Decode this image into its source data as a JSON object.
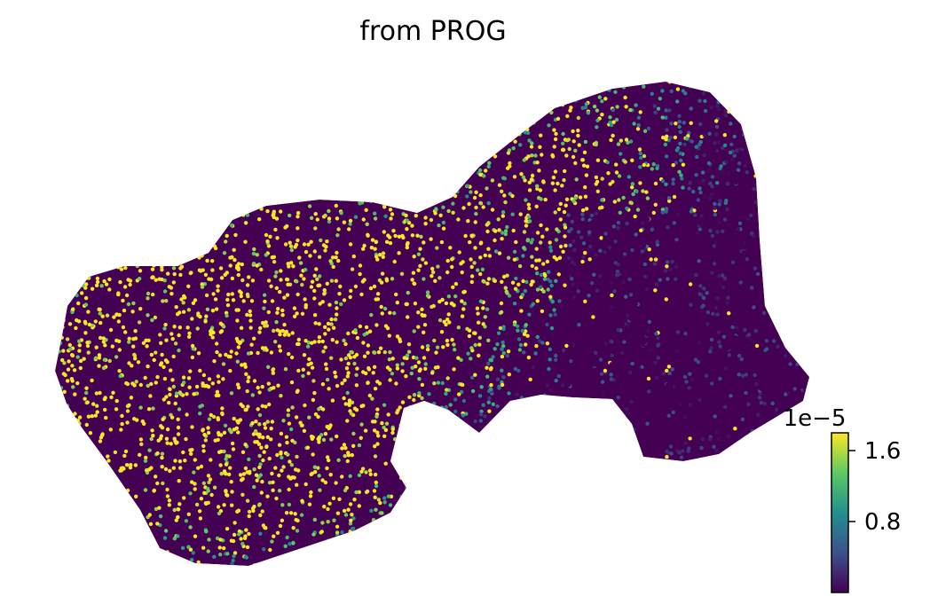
{
  "chart_data": {
    "type": "scatter",
    "title": "from PROG",
    "xlabel": "",
    "ylabel": "",
    "axes_visible": false,
    "grid": false,
    "colormap": "viridis",
    "colormap_stops": [
      "#440154",
      "#3b528b",
      "#21908d",
      "#5dc963",
      "#fde725"
    ],
    "colorbar": {
      "placement": "bottom-right",
      "offset_label": "1e−5",
      "ticks": [
        {
          "value": 0.8,
          "label": "0.8"
        },
        {
          "value": 1.6,
          "label": "1.6"
        }
      ],
      "range": [
        0,
        1.8
      ]
    },
    "value_units": "1e-5",
    "regions": [
      {
        "cx": 0.0,
        "cy": 0.0,
        "r": 1.0,
        "v": 1.8,
        "spread": 0.35
      }
    ]
  }
}
